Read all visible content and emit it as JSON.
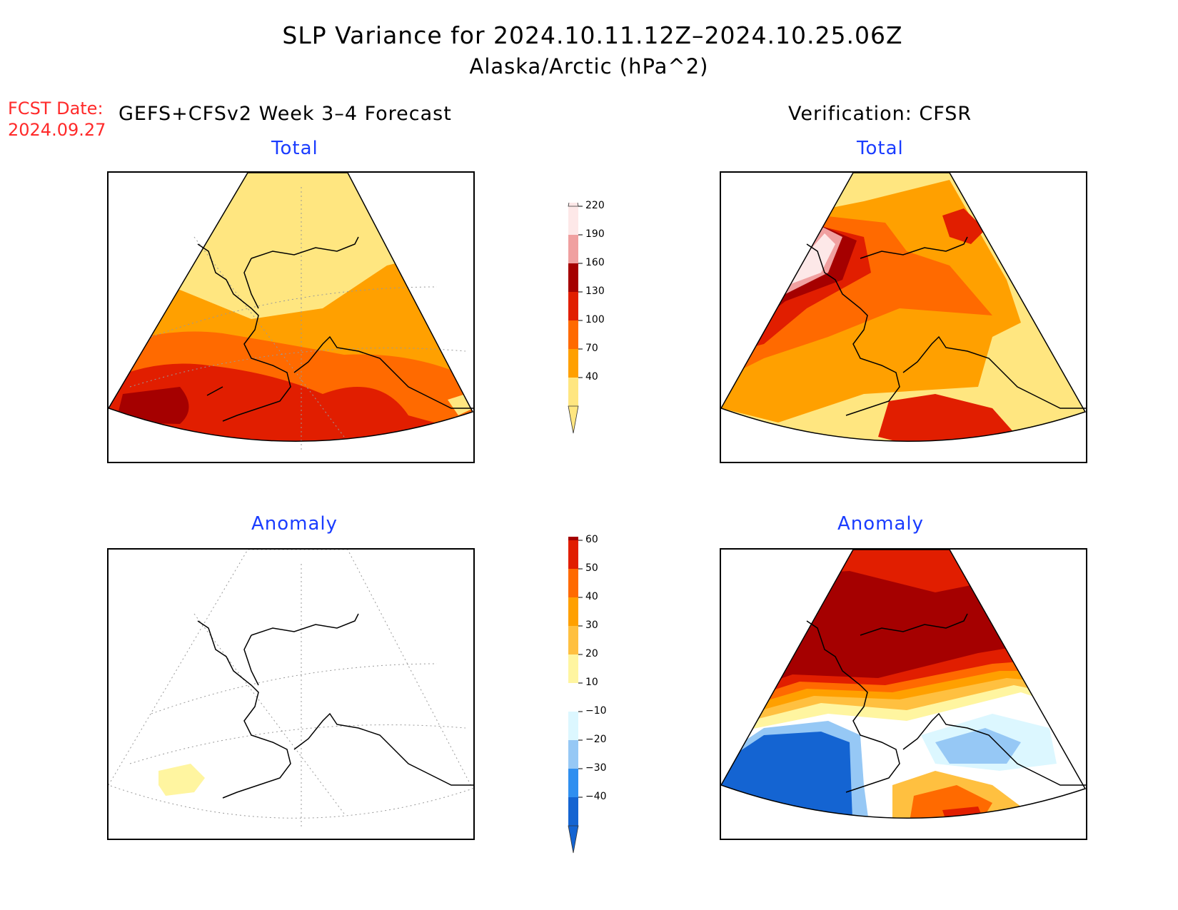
{
  "title": "SLP Variance for 2024.10.11.12Z–2024.10.25.06Z",
  "subtitle": "Alaska/Arctic (hPa^2)",
  "fcst_label": "FCST Date:",
  "fcst_date": "2024.09.27",
  "left_heading": "GEFS+CFSv2 Week 3–4 Forecast",
  "right_heading": "Verification: CFSR",
  "panels": {
    "top_left": {
      "title": "Total"
    },
    "top_right": {
      "title": "Total"
    },
    "bottom_left": {
      "title": "Anomaly"
    },
    "bottom_right": {
      "title": "Anomaly"
    }
  },
  "colorbars": {
    "total": {
      "labels": [
        "40",
        "70",
        "100",
        "130",
        "160",
        "190",
        "220"
      ],
      "colors": [
        "#ffe680",
        "#ffa000",
        "#ff6a00",
        "#e11e00",
        "#a50000",
        "#f0a0a0",
        "#fde8e8"
      ]
    },
    "anomaly": {
      "labels": [
        "−40",
        "−30",
        "−20",
        "−10",
        "10",
        "20",
        "30",
        "40",
        "50",
        "60"
      ],
      "colors": [
        "#1464d2",
        "#2f8ff0",
        "#96c8f5",
        "#dcf7ff",
        "#ffffff",
        "#fff5a0",
        "#ffc040",
        "#ffa000",
        "#ff6a00",
        "#e11e00",
        "#a50000"
      ]
    }
  }
}
